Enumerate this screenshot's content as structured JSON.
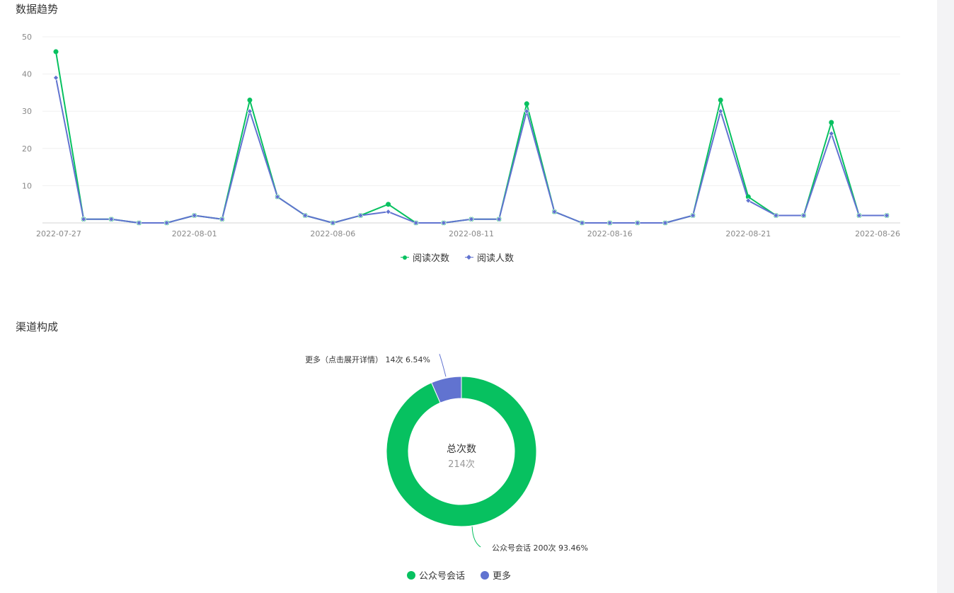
{
  "sections": {
    "trend_title": "数据趋势",
    "channel_title": "渠道构成"
  },
  "colors": {
    "green": "#07c160",
    "blue": "#6173d0",
    "grid": "#f0f0f0",
    "axis": "#d5d5d5",
    "tick_text": "#888888"
  },
  "chart_data": [
    {
      "type": "line",
      "title": "",
      "x": [
        "2022-07-27",
        "2022-07-28",
        "2022-07-29",
        "2022-07-30",
        "2022-07-31",
        "2022-08-01",
        "2022-08-02",
        "2022-08-03",
        "2022-08-04",
        "2022-08-05",
        "2022-08-06",
        "2022-08-07",
        "2022-08-08",
        "2022-08-09",
        "2022-08-10",
        "2022-08-11",
        "2022-08-12",
        "2022-08-13",
        "2022-08-14",
        "2022-08-15",
        "2022-08-16",
        "2022-08-17",
        "2022-08-18",
        "2022-08-19",
        "2022-08-20",
        "2022-08-21",
        "2022-08-22",
        "2022-08-23",
        "2022-08-24",
        "2022-08-25",
        "2022-08-26"
      ],
      "x_tick_labels": [
        "2022-07-27",
        "2022-08-01",
        "2022-08-06",
        "2022-08-11",
        "2022-08-16",
        "2022-08-21",
        "2022-08-26"
      ],
      "y_ticks": [
        10,
        20,
        30,
        40,
        50
      ],
      "ylim": [
        0,
        50
      ],
      "grid": true,
      "legend_position": "bottom",
      "series": [
        {
          "name": "阅读次数",
          "color": "#07c160",
          "marker": "circle",
          "values": [
            46,
            1,
            1,
            0,
            0,
            2,
            1,
            33,
            7,
            2,
            0,
            2,
            5,
            0,
            0,
            1,
            1,
            32,
            3,
            0,
            0,
            0,
            0,
            2,
            33,
            7,
            2,
            2,
            27,
            2,
            2
          ]
        },
        {
          "name": "阅读人数",
          "color": "#6173d0",
          "marker": "diamond",
          "values": [
            39,
            1,
            1,
            0,
            0,
            2,
            1,
            30,
            7,
            2,
            0,
            2,
            3,
            0,
            0,
            1,
            1,
            30,
            3,
            0,
            0,
            0,
            0,
            2,
            30,
            6,
            2,
            2,
            24,
            2,
            2
          ]
        }
      ]
    },
    {
      "type": "pie",
      "title": "",
      "center_label": "总次数",
      "center_value": "214次",
      "legend_position": "bottom",
      "slices": [
        {
          "name": "公众号会话",
          "value": 200,
          "percent": "93.46%",
          "label": "公众号会话 200次 93.46%",
          "color": "#07c160"
        },
        {
          "name": "更多",
          "value": 14,
          "percent": "6.54%",
          "label": "更多（点击展开详情） 14次 6.54%",
          "color": "#6173d0"
        }
      ]
    }
  ]
}
